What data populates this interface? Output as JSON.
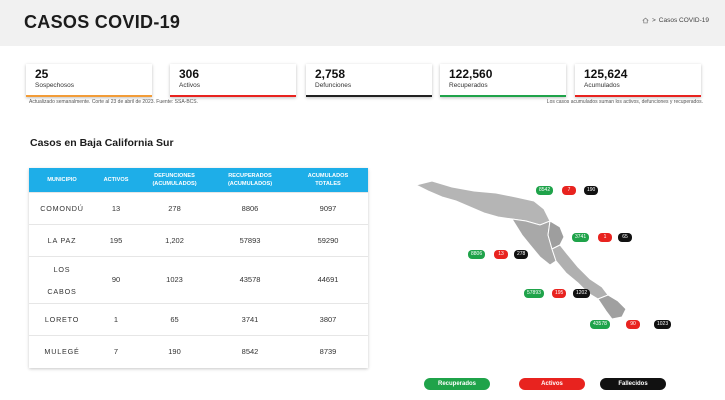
{
  "header": {
    "title": "CASOS COVID-19",
    "breadcrumb_current": "Casos COVID-19",
    "breadcrumb_separator": ">",
    "home_icon": "home-icon"
  },
  "summary": {
    "cards": [
      {
        "value": "25",
        "label": "Sospechosos",
        "color": "#f29c38"
      },
      {
        "value": "306",
        "label": "Activos",
        "color": "#e8231f"
      },
      {
        "value": "2,758",
        "label": "Defunciones",
        "color": "#222222"
      },
      {
        "value": "122,560",
        "label": "Recuperados",
        "color": "#1fa34a"
      },
      {
        "value": "125,624",
        "label": "Acumulados",
        "color": "#e8231f"
      }
    ],
    "note_left": "Actualizado semanalmente. Corte al 23 de abril de 2023. Fuente: SSA-BCS.",
    "note_right": "Los casos acumulados suman los activos, defunciones y recuperados."
  },
  "section": {
    "title": "Casos en Baja California Sur"
  },
  "table": {
    "headers": {
      "municipio": "MUNICIPIO",
      "activos": "ACTIVOS",
      "defunciones_1": "DEFUNCIONES",
      "defunciones_2": "(ACUMULADOS)",
      "recuperados_1": "RECUPERADOS",
      "recuperados_2": "(ACUMULADOS)",
      "acumulados_1": "ACUMULADOS",
      "acumulados_2": "TOTALES"
    },
    "rows": [
      {
        "municipio": "COMONDÚ",
        "activos": "13",
        "defunciones": "278",
        "recuperados": "8806",
        "acumulados": "9097"
      },
      {
        "municipio": "LA PAZ",
        "activos": "195",
        "defunciones": "1,202",
        "recuperados": "57893",
        "acumulados": "59290"
      },
      {
        "municipio_1": "LOS",
        "municipio_2": "CABOS",
        "activos": "90",
        "defunciones": "1023",
        "recuperados": "43578",
        "acumulados": "44691"
      },
      {
        "municipio": "LORETO",
        "activos": "1",
        "defunciones": "65",
        "recuperados": "3741",
        "acumulados": "3807"
      },
      {
        "municipio": "MULEGÉ",
        "activos": "7",
        "defunciones": "190",
        "recuperados": "8542",
        "acumulados": "8739"
      }
    ]
  },
  "map": {
    "mulege": {
      "recuperados": "8542",
      "activos": "7",
      "fallecidos": "190"
    },
    "loreto": {
      "recuperados": "3741",
      "activos": "1",
      "fallecidos": "65"
    },
    "comondu": {
      "recuperados": "8806",
      "activos": "13",
      "fallecidos": "278"
    },
    "la_paz": {
      "recuperados": "57893",
      "activos": "195",
      "fallecidos": "1202"
    },
    "los_cabos": {
      "recuperados": "43578",
      "activos": "90",
      "fallecidos": "1023"
    }
  },
  "legend": {
    "recuperados": "Recuperados",
    "activos": "Activos",
    "fallecidos": "Fallecidos"
  }
}
